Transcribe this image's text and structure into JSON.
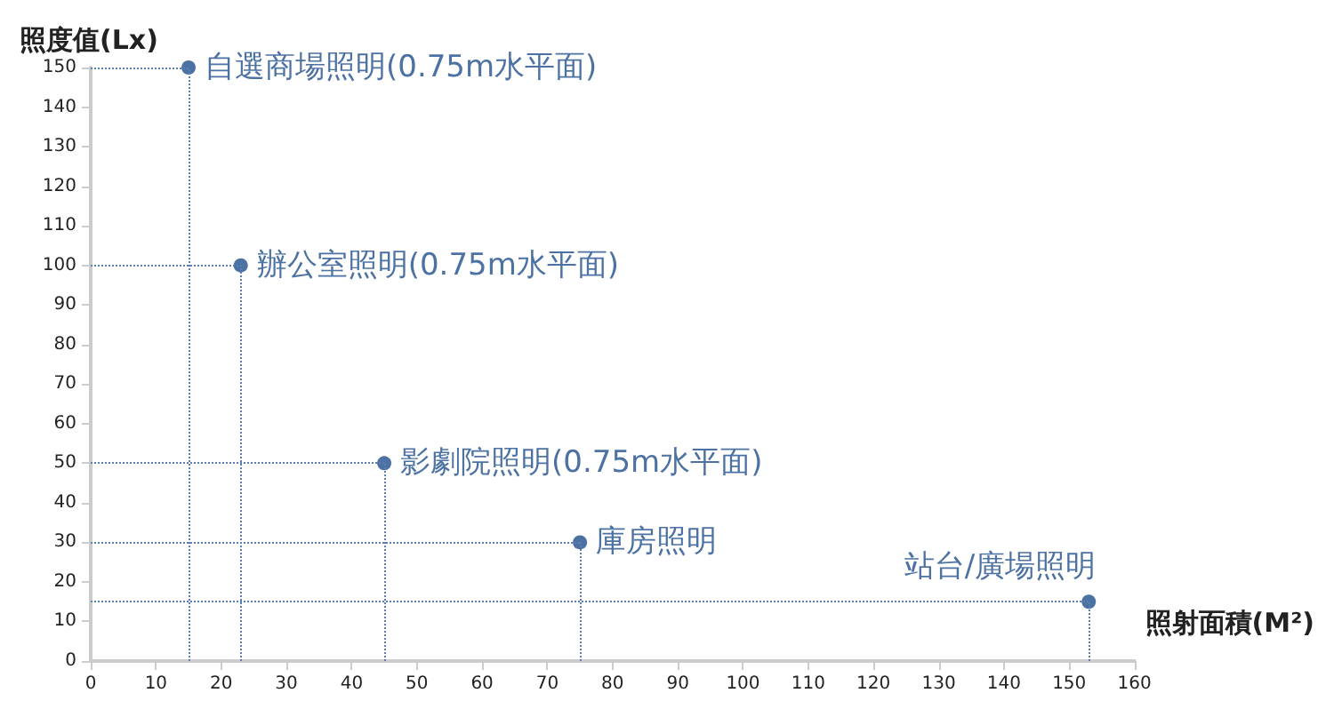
{
  "chart_data": {
    "type": "scatter",
    "xlabel": "照射面積(M²)",
    "ylabel": "照度值(Lx)",
    "x": [
      15,
      23,
      45,
      75,
      153
    ],
    "values": [
      150,
      100,
      50,
      30,
      15
    ],
    "color": "#1f4e8c",
    "marker": "circle",
    "grid": false,
    "ref_lines": [
      {
        "axis": "y",
        "value": 150,
        "color": "#5a7fb5",
        "line_style": "dotted"
      },
      {
        "axis": "y",
        "value": 100,
        "color": "#5a7fb5",
        "line_style": "dotted"
      },
      {
        "axis": "y",
        "value": 50,
        "color": "#5a7fb5",
        "line_style": "dotted"
      },
      {
        "axis": "y",
        "value": 30,
        "color": "#5a7fb5",
        "line_style": "dotted"
      },
      {
        "axis": "y",
        "value": 15,
        "color": "#5a7fb5",
        "line_style": "dotted"
      },
      {
        "axis": "x",
        "value": 15,
        "color": "#5a7fb5",
        "line_style": "dotted"
      },
      {
        "axis": "x",
        "value": 23,
        "color": "#5a7fb5",
        "line_style": "dotted"
      },
      {
        "axis": "x",
        "value": 45,
        "color": "#5a7fb5",
        "line_style": "dotted"
      },
      {
        "axis": "x",
        "value": 75,
        "color": "#5a7fb5",
        "line_style": "dotted"
      },
      {
        "axis": "x",
        "value": 153,
        "color": "#5a7fb5",
        "line_style": "dotted"
      }
    ],
    "xlim": [
      0,
      160
    ],
    "xticks": [
      0,
      10,
      20,
      30,
      40,
      50,
      60,
      70,
      80,
      90,
      100,
      110,
      120,
      130,
      140,
      150,
      160
    ],
    "ylim": [
      0,
      150
    ],
    "yticks": [
      0,
      10,
      20,
      30,
      40,
      50,
      60,
      70,
      80,
      90,
      100,
      110,
      120,
      130,
      140,
      150
    ],
    "annotations": [
      {
        "text": "自選商場照明(0.75m水平面)",
        "x": 15,
        "y": 150
      },
      {
        "text": "辦公室照明(0.75m水平面)",
        "x": 23,
        "y": 100
      },
      {
        "text": "影劇院照明(0.75m水平面)",
        "x": 45,
        "y": 50
      },
      {
        "text": "庫房照明",
        "x": 75,
        "y": 30
      },
      {
        "text": "站台/廣場照明",
        "x": 153,
        "y": 15
      }
    ]
  }
}
